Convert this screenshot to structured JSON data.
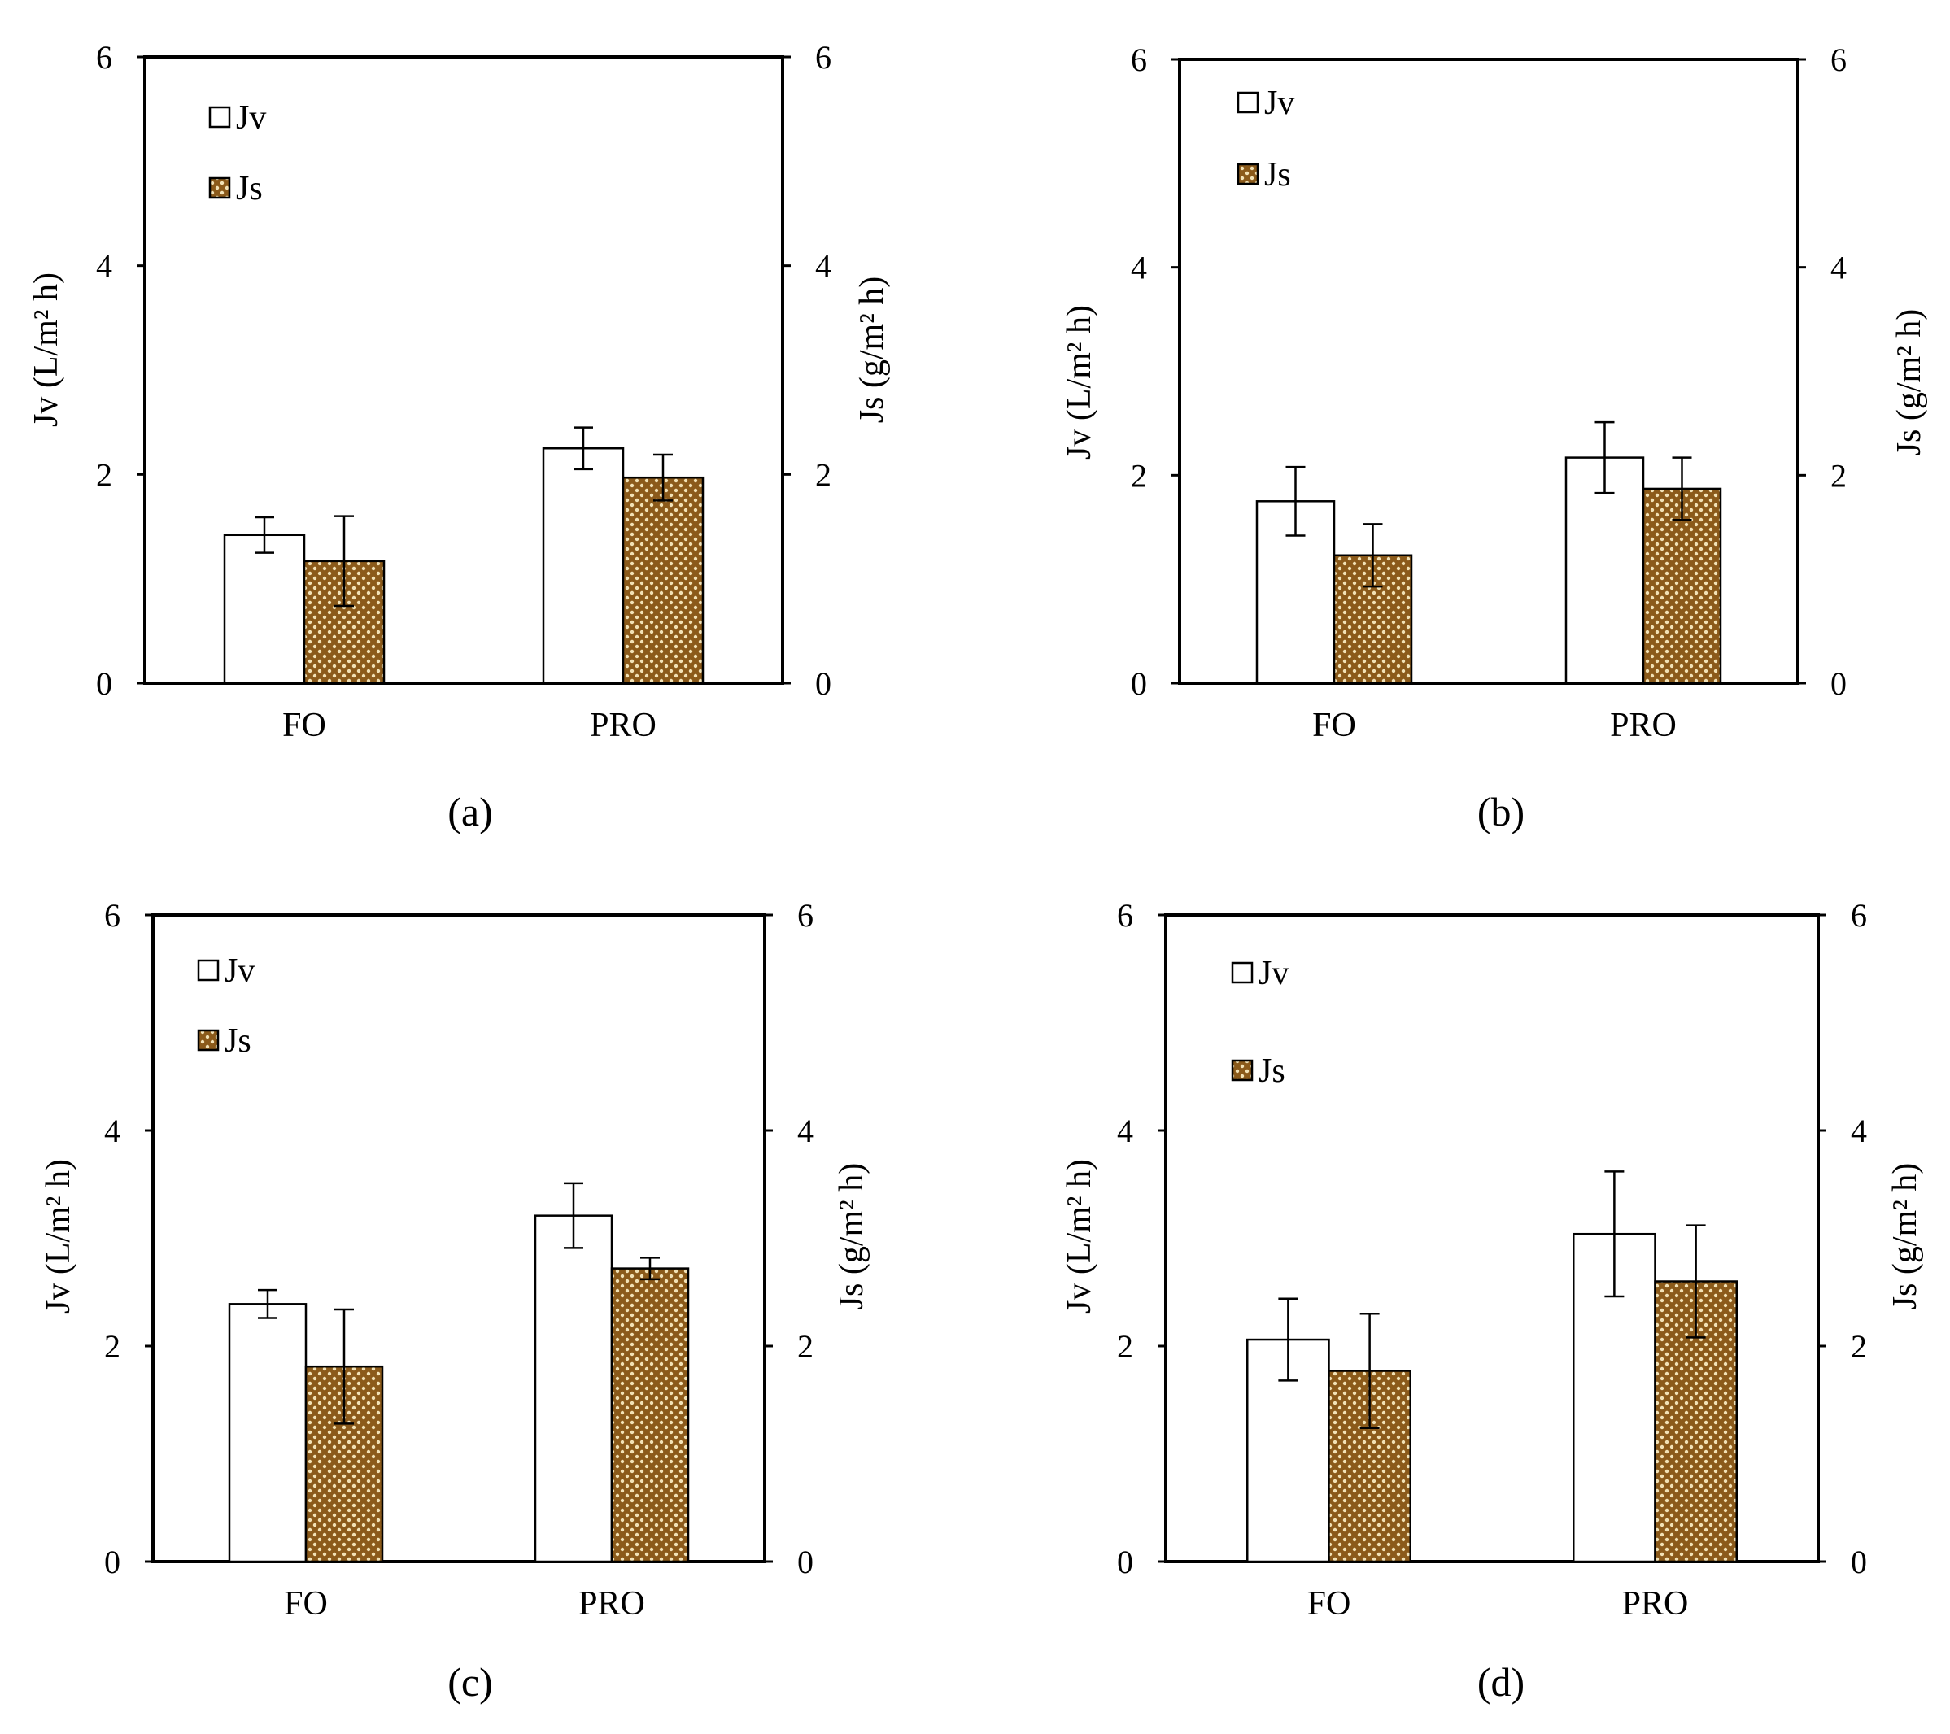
{
  "figure": {
    "colors": {
      "jv_fill": "#ffffff",
      "js_pattern_bg": "#8b5a1a",
      "js_pattern_dot": "#f2e2b6",
      "axis": "#000000",
      "ylabel_color": "#5a2a0a"
    }
  },
  "chart_data": [
    {
      "panel": "(a)",
      "type": "bar",
      "categories": [
        "FO",
        "PRO"
      ],
      "series": [
        {
          "name": "Jv",
          "axis": "left",
          "values": [
            1.42,
            2.25
          ],
          "errors": [
            0.17,
            0.2
          ]
        },
        {
          "name": "Js",
          "axis": "right",
          "values": [
            1.17,
            1.97
          ],
          "errors": [
            0.43,
            0.22
          ]
        }
      ],
      "ylabel_left": "Jv (L/m² h)",
      "ylabel_right": "Js (g/m² h)",
      "ylim": [
        0,
        6
      ],
      "yticks": [
        "0",
        "2",
        "4",
        "6"
      ],
      "legend": [
        "Jv",
        "Js"
      ],
      "legend_position": "top-left"
    },
    {
      "panel": "(b)",
      "type": "bar",
      "categories": [
        "FO",
        "PRO"
      ],
      "series": [
        {
          "name": "Jv",
          "axis": "left",
          "values": [
            1.75,
            2.17
          ],
          "errors": [
            0.33,
            0.34
          ]
        },
        {
          "name": "Js",
          "axis": "right",
          "values": [
            1.23,
            1.87
          ],
          "errors": [
            0.3,
            0.3
          ]
        }
      ],
      "ylabel_left": "Jv (L/m² h)",
      "ylabel_right": "Js (g/m² h)",
      "ylim": [
        0,
        6
      ],
      "yticks": [
        "0",
        "2",
        "4",
        "6"
      ],
      "legend": [
        "Jv",
        "Js"
      ],
      "legend_position": "top-left"
    },
    {
      "panel": "(c)",
      "type": "bar",
      "categories": [
        "FO",
        "PRO"
      ],
      "series": [
        {
          "name": "Jv",
          "axis": "left",
          "values": [
            2.39,
            3.21
          ],
          "errors": [
            0.13,
            0.3
          ]
        },
        {
          "name": "Js",
          "axis": "right",
          "values": [
            1.81,
            2.72
          ],
          "errors": [
            0.53,
            0.1
          ]
        }
      ],
      "ylabel_left": "Jv (L/m² h)",
      "ylabel_right": "Js (g/m² h)",
      "ylim": [
        0,
        6
      ],
      "yticks": [
        "0",
        "2",
        "4",
        "6"
      ],
      "legend": [
        "Jv",
        "Js"
      ],
      "legend_position": "top-left"
    },
    {
      "panel": "(d)",
      "type": "bar",
      "categories": [
        "FO",
        "PRO"
      ],
      "series": [
        {
          "name": "Jv",
          "axis": "left",
          "values": [
            2.06,
            3.04
          ],
          "errors": [
            0.38,
            0.58
          ]
        },
        {
          "name": "Js",
          "axis": "right",
          "values": [
            1.77,
            2.6
          ],
          "errors": [
            0.53,
            0.52
          ]
        }
      ],
      "ylabel_left": "Jv (L/m² h)",
      "ylabel_right": "Js (g/m² h)",
      "ylim": [
        0,
        6
      ],
      "yticks": [
        "0",
        "2",
        "4",
        "6"
      ],
      "legend": [
        "Jv",
        "Js"
      ],
      "legend_position": "top-left"
    }
  ]
}
